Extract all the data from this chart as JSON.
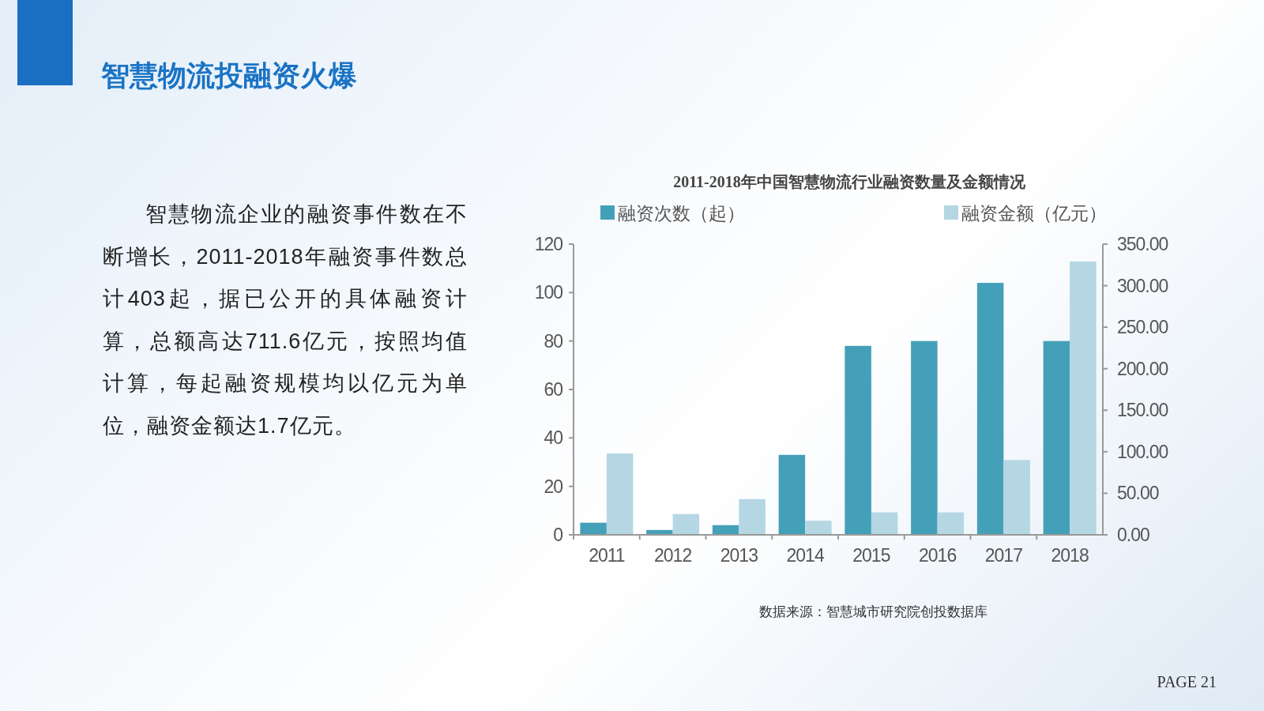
{
  "chart_data": {
    "type": "bar",
    "title": "2011-2018年中国智慧物流行业融资数量及金额情况",
    "categories": [
      "2011",
      "2012",
      "2013",
      "2014",
      "2015",
      "2016",
      "2017",
      "2018"
    ],
    "series": [
      {
        "name": "融资次数（起）",
        "color": "#44a0b8",
        "values": [
          5,
          2,
          4,
          33,
          78,
          80,
          104,
          80
        ]
      },
      {
        "name": "融资金额（亿元）",
        "color": "#b4d7e3",
        "axis": "y2",
        "values": [
          98,
          25,
          43,
          17,
          27,
          27,
          90,
          329
        ]
      }
    ],
    "ylim": [
      0,
      120
    ],
    "yticks": [
      0,
      20,
      40,
      60,
      80,
      100,
      120
    ],
    "y2lim": [
      0,
      350
    ],
    "y2ticks": [
      {
        "value": 0,
        "label": "0.00"
      },
      {
        "value": 50,
        "label": "50.00"
      },
      {
        "value": 100,
        "label": "100.00"
      },
      {
        "value": 150,
        "label": "150.00"
      },
      {
        "value": 200,
        "label": "200.00"
      },
      {
        "value": 250,
        "label": "250.00"
      },
      {
        "value": 300,
        "label": "300.00"
      },
      {
        "value": 350,
        "label": "350.00"
      }
    ],
    "grid": false,
    "legend": "top",
    "annotations": [
      "智慧物流投融资火爆",
      "智慧物流企业的融资事件数在不断增长，2011-2018年融资事件数总计403起，据已公开的具体融资计算，总额高达711.6亿元，按照均值计算，每起融资规模均以亿元为单位，融资金额达1.7亿元。",
      "数据来源：智慧城市研究院创投数据库",
      "PAGE    21"
    ]
  }
}
